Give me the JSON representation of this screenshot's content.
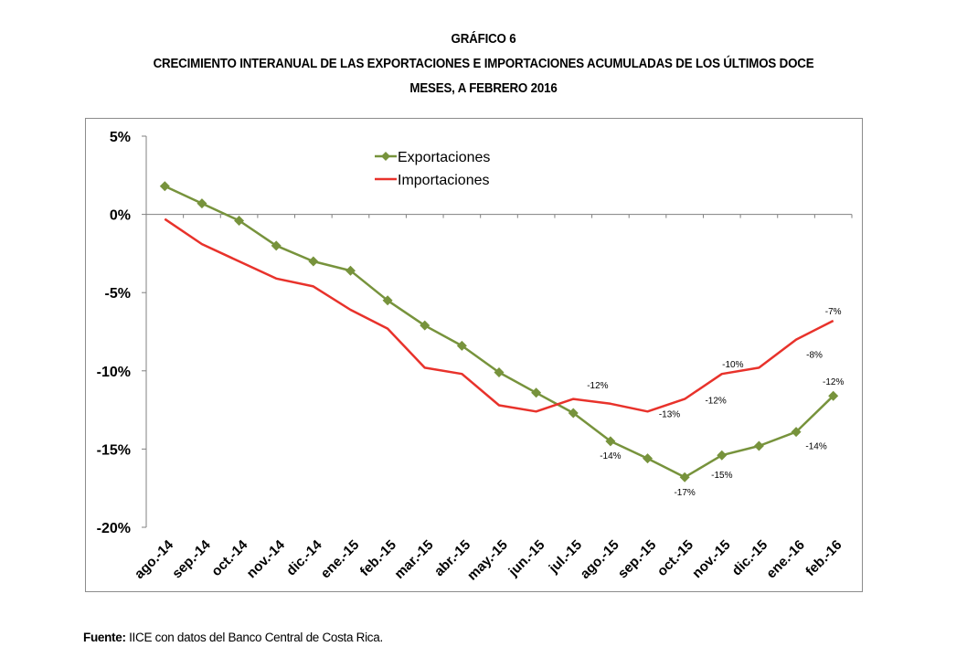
{
  "title": {
    "line1": "GRÁFICO 6",
    "line2": "CRECIMIENTO INTERANUAL DE LAS EXPORTACIONES E IMPORTACIONES ACUMULADAS DE LOS ÚLTIMOS DOCE",
    "line3": "MESES, A FEBRERO 2016"
  },
  "source": {
    "label": "Fuente:",
    "text": " IICE con datos del Banco Central de Costa Rica."
  },
  "chart_data": {
    "type": "line",
    "categories": [
      "ago.-14",
      "sep.-14",
      "oct.-14",
      "nov.-14",
      "dic.-14",
      "ene.-15",
      "feb.-15",
      "mar.-15",
      "abr.-15",
      "may.-15",
      "jun.-15",
      "jul.-15",
      "ago.-15",
      "sep.-15",
      "oct.-15",
      "nov.-15",
      "dic.-15",
      "ene.-16",
      "feb.-16"
    ],
    "ylim": [
      -20,
      5
    ],
    "yticks": [
      5,
      0,
      -5,
      -10,
      -15,
      -20
    ],
    "ytick_labels": [
      "5%",
      "0%",
      "-5%",
      "-10%",
      "-15%",
      "-20%"
    ],
    "grid": false,
    "legend_position": "top-left",
    "series": [
      {
        "name": "Exportaciones",
        "color": "#77933c",
        "marker": "diamond",
        "values": [
          1.8,
          0.7,
          -0.4,
          -2.0,
          -3.0,
          -3.6,
          -5.5,
          -7.1,
          -8.4,
          -10.1,
          -11.4,
          -12.7,
          -14.5,
          -15.6,
          -16.8,
          -15.4,
          -14.8,
          -13.9,
          -11.6
        ],
        "data_labels": {
          "12": "-14%",
          "14": "-17%",
          "15": "-15%",
          "17": "-14%",
          "18": "-12%"
        }
      },
      {
        "name": "Importaciones",
        "color": "#e8322b",
        "marker": "none",
        "values": [
          -0.3,
          -1.9,
          -3.0,
          -4.1,
          -4.6,
          -6.1,
          -7.3,
          -9.8,
          -10.2,
          -12.2,
          -12.6,
          -11.8,
          -12.1,
          -12.6,
          -11.8,
          -10.2,
          -9.8,
          -8.0,
          -6.8
        ],
        "data_labels": {
          "12": "-12%",
          "14": "-12%",
          "15": "-10%",
          "17": "-8%",
          "18": "-7%"
        }
      }
    ],
    "extra_labels": [
      {
        "text": "-13%",
        "category_index": 13
      }
    ]
  }
}
